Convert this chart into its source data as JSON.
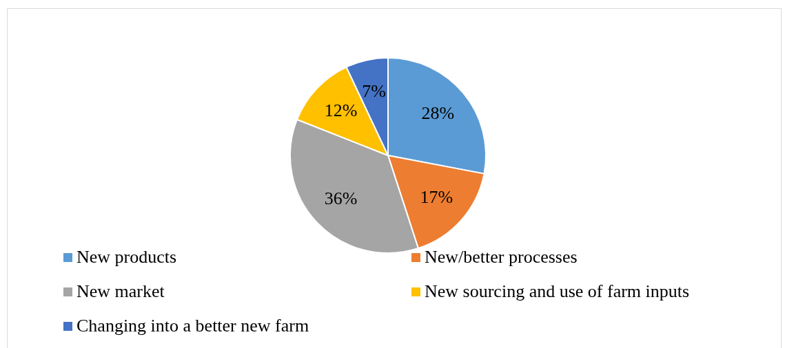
{
  "chart_data": {
    "type": "pie",
    "categories": [
      "New products",
      "New/better processes",
      "New market",
      "New sourcing and use of farm inputs",
      "Changing into a better new farm"
    ],
    "values": [
      28,
      17,
      36,
      12,
      7
    ],
    "colors": [
      "#5b9bd5",
      "#ed7d31",
      "#a5a5a5",
      "#ffc000",
      "#4472c4"
    ],
    "value_labels": [
      "28%",
      "17%",
      "36%",
      "12%",
      "7%"
    ],
    "legend": "bottom"
  }
}
